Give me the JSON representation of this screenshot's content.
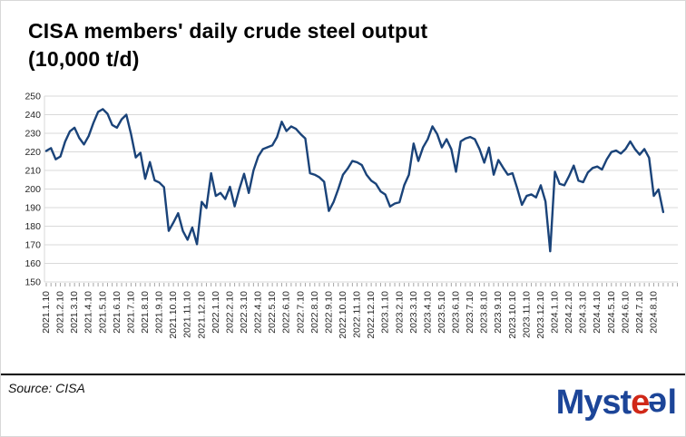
{
  "title": {
    "line1": "CISA members' daily crude steel output",
    "line2": "(10,000 t/d)"
  },
  "footer": {
    "source": "Source: CISA"
  },
  "logo": {
    "part_myst": "Myst",
    "part_e_red": "e",
    "part_e_blue": "e",
    "part_l": "l",
    "blue": "#1c4598",
    "red": "#d02818"
  },
  "chart_data": {
    "type": "line",
    "title": "CISA members' daily crude steel output (10,000 t/d)",
    "xlabel": "",
    "ylabel": "",
    "ylim": [
      150,
      250
    ],
    "y_ticks": [
      150,
      160,
      170,
      180,
      190,
      200,
      210,
      220,
      230,
      240,
      250
    ],
    "grid": "horizontal",
    "legend": "none",
    "line_color": "#1a4379",
    "points_per_month": 3,
    "x_tick_labels": [
      "2021.1.10",
      "2021.2.10",
      "2021.3.10",
      "2021.4.10",
      "2021.5.10",
      "2021.6.10",
      "2021.7.10",
      "2021.8.10",
      "2021.9.10",
      "2021.10.10",
      "2021.11.10",
      "2021.12.10",
      "2022.1.10",
      "2022.2.10",
      "2022.3.10",
      "2022.4.10",
      "2022.5.10",
      "2022.6.10",
      "2022.7.10",
      "2022.8.10",
      "2022.9.10",
      "2022.10.10",
      "2022.11.10",
      "2022.12.10",
      "2023.1.10",
      "2023.2.10",
      "2023.3.10",
      "2023.4.10",
      "2023.5.10",
      "2023.6.10",
      "2023.7.10",
      "2023.8.10",
      "2023.9.10",
      "2023.10.10",
      "2023.11.10",
      "2023.12.10",
      "2024.1.10",
      "2024.2.10",
      "2024.3.10",
      "2024.4.10",
      "2024.5.10",
      "2024.6.10",
      "2024.7.10",
      "2024.8.10"
    ],
    "series": [
      {
        "name": "CISA members' daily crude steel output (10,000 t/d)",
        "values": [
          220.5,
          222.0,
          216.0,
          217.5,
          225.5,
          231.0,
          233.0,
          227.5,
          224.0,
          228.5,
          235.5,
          241.5,
          243.0,
          240.5,
          234.5,
          233.0,
          237.5,
          240.0,
          229.5,
          217.0,
          219.5,
          205.5,
          214.5,
          204.7,
          203.5,
          201.0,
          177.5,
          182.0,
          187.0,
          177.5,
          172.7,
          179.3,
          170.3,
          193.1,
          189.8,
          208.5,
          196.3,
          197.9,
          194.6,
          201.2,
          190.7,
          200.0,
          208.2,
          197.9,
          210.0,
          217.5,
          221.5,
          222.5,
          223.5,
          228.0,
          236.2,
          231.2,
          233.7,
          232.4,
          229.6,
          227.2,
          208.5,
          207.7,
          206.3,
          203.9,
          188.2,
          193.0,
          200.0,
          207.7,
          211.0,
          215.1,
          214.4,
          212.9,
          207.7,
          204.5,
          202.8,
          198.7,
          197.0,
          190.6,
          192.2,
          192.9,
          202.0,
          207.7,
          224.5,
          215.1,
          222.4,
          226.8,
          233.7,
          229.6,
          222.4,
          226.8,
          221.5,
          209.3,
          225.6,
          227.2,
          228.0,
          226.8,
          221.5,
          214.2,
          222.3,
          207.7,
          215.6,
          211.5,
          207.7,
          208.5,
          200.4,
          191.5,
          196.3,
          197.1,
          195.5,
          202.0,
          193.3,
          166.5,
          209.3,
          202.8,
          202.0,
          206.9,
          212.6,
          204.5,
          203.7,
          208.9,
          211.3,
          212.1,
          210.5,
          215.9,
          219.9,
          220.7,
          219.1,
          221.5,
          225.6,
          221.5,
          218.5,
          221.5,
          216.8,
          196.3,
          199.8,
          187.6
        ]
      }
    ]
  }
}
